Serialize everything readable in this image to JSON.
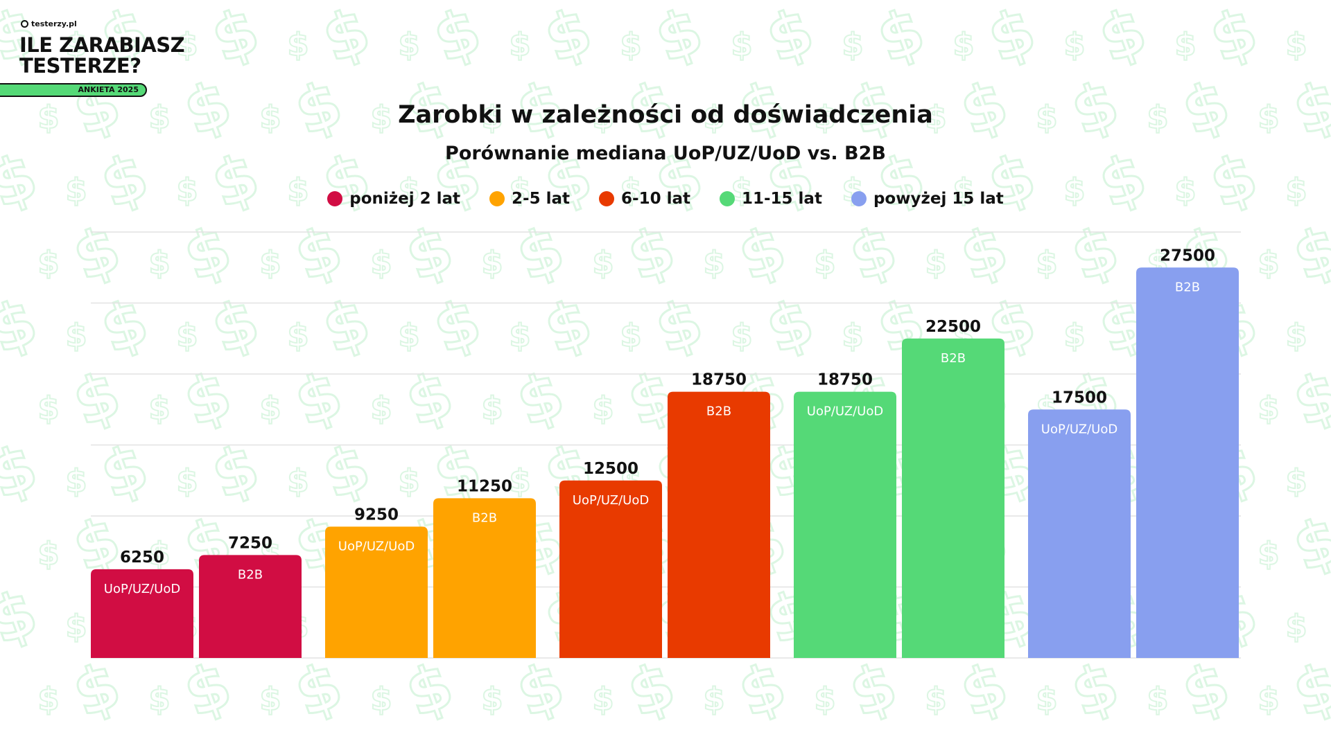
{
  "branding": {
    "site": "testerzy.pl",
    "headline_line1": "ILE ZARABIASZ",
    "headline_line2": "TESTERZE?",
    "badge": "ANKIETA 2025"
  },
  "chart_data": {
    "type": "bar",
    "title": "Zarobki w zależności od doświadczenia",
    "subtitle": "Porównanie mediana UoP/UZ/UoD vs. B2B",
    "legend_position": "top",
    "grid": true,
    "ylim": [
      0,
      30000
    ],
    "groups": [
      {
        "name": "poniżej 2 lat",
        "color": "#D10D43"
      },
      {
        "name": "2-5 lat",
        "color": "#FFA300"
      },
      {
        "name": "6-10 lat",
        "color": "#E83A00"
      },
      {
        "name": "11-15 lat",
        "color": "#55D977"
      },
      {
        "name": "powyżej 15 lat",
        "color": "#889FEF"
      }
    ],
    "bars": [
      {
        "group": 0,
        "contract": "UoP/UZ/UoD",
        "value": 6250
      },
      {
        "group": 0,
        "contract": "B2B",
        "value": 7250
      },
      {
        "group": 1,
        "contract": "UoP/UZ/UoD",
        "value": 9250
      },
      {
        "group": 1,
        "contract": "B2B",
        "value": 11250
      },
      {
        "group": 2,
        "contract": "UoP/UZ/UoD",
        "value": 12500
      },
      {
        "group": 2,
        "contract": "B2B",
        "value": 18750
      },
      {
        "group": 3,
        "contract": "UoP/UZ/UoD",
        "value": 18750
      },
      {
        "group": 3,
        "contract": "B2B",
        "value": 22500
      },
      {
        "group": 4,
        "contract": "UoP/UZ/UoD",
        "value": 17500
      },
      {
        "group": 4,
        "contract": "B2B",
        "value": 27500
      }
    ]
  }
}
